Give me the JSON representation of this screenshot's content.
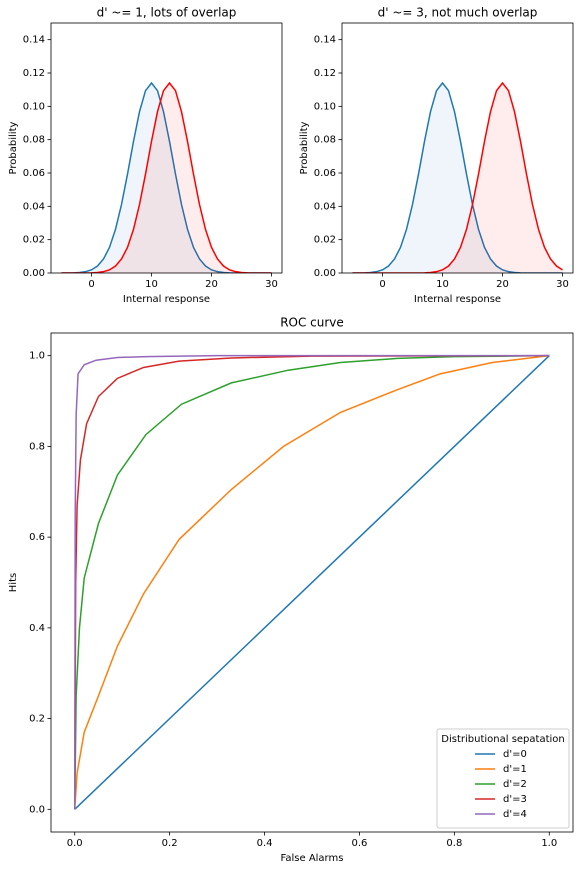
{
  "chart_data": [
    {
      "type": "line",
      "title": "d' ~= 1, lots of overlap",
      "xlabel": "Internal response",
      "ylabel": "Probability",
      "fill": true,
      "x": [
        -5,
        -4,
        -3,
        -2,
        -1,
        0,
        1,
        2,
        3,
        4,
        5,
        6,
        7,
        8,
        9,
        10,
        11,
        12,
        13,
        14,
        15,
        16,
        17,
        18,
        19,
        20,
        21,
        22,
        23,
        24,
        25,
        26,
        27,
        28,
        29,
        30
      ],
      "series": [
        {
          "color": "#1f77b4",
          "values": [
            0,
            0,
            0.0001,
            0.0003,
            0.0008,
            0.0019,
            0.0042,
            0.0084,
            0.0154,
            0.0262,
            0.0411,
            0.0593,
            0.079,
            0.0968,
            0.1094,
            0.114,
            0.1094,
            0.0968,
            0.079,
            0.0593,
            0.0411,
            0.0262,
            0.0154,
            0.0084,
            0.0042,
            0.0019,
            0.0008,
            0.0003,
            0.0001,
            0,
            0,
            0,
            0,
            0,
            0,
            0
          ]
        },
        {
          "color": "#ff0000",
          "values": [
            0,
            0,
            0,
            0,
            0,
            0.0001,
            0.0003,
            0.0008,
            0.0019,
            0.0042,
            0.0084,
            0.0154,
            0.0262,
            0.0411,
            0.0593,
            0.079,
            0.0968,
            0.1094,
            0.114,
            0.1094,
            0.0968,
            0.079,
            0.0593,
            0.0411,
            0.0262,
            0.0154,
            0.0084,
            0.0042,
            0.0019,
            0.0008,
            0.0003,
            0.0001,
            0,
            0,
            0,
            0
          ]
        }
      ],
      "xlim": [
        -6.75,
        31.75
      ],
      "xticks": [
        0,
        10,
        20,
        30
      ],
      "ylim": [
        0,
        0.15
      ],
      "yticks": [
        {
          "value": 0,
          "label": "0.00"
        },
        {
          "value": 0.02,
          "label": "0.02"
        },
        {
          "value": 0.04,
          "label": "0.04"
        },
        {
          "value": 0.06,
          "label": "0.06"
        },
        {
          "value": 0.08,
          "label": "0.08"
        },
        {
          "value": 0.1,
          "label": "0.10"
        },
        {
          "value": 0.12,
          "label": "0.12"
        },
        {
          "value": 0.14,
          "label": "0.14"
        }
      ]
    },
    {
      "type": "line",
      "title": "d' ~= 3, not much overlap",
      "xlabel": "Internal response",
      "ylabel": "Probability",
      "fill": true,
      "x": [
        -5,
        -4,
        -3,
        -2,
        -1,
        0,
        1,
        2,
        3,
        4,
        5,
        6,
        7,
        8,
        9,
        10,
        11,
        12,
        13,
        14,
        15,
        16,
        17,
        18,
        19,
        20,
        21,
        22,
        23,
        24,
        25,
        26,
        27,
        28,
        29,
        30
      ],
      "series": [
        {
          "color": "#1f77b4",
          "values": [
            0,
            0,
            0.0001,
            0.0003,
            0.0008,
            0.0019,
            0.0042,
            0.0084,
            0.0154,
            0.0262,
            0.0411,
            0.0593,
            0.079,
            0.0968,
            0.1094,
            0.114,
            0.1094,
            0.0968,
            0.079,
            0.0593,
            0.0411,
            0.0262,
            0.0154,
            0.0084,
            0.0042,
            0.0019,
            0.0008,
            0.0003,
            0.0001,
            0,
            0,
            0,
            0,
            0,
            0,
            0
          ]
        },
        {
          "color": "#ff0000",
          "values": [
            0,
            0,
            0,
            0,
            0,
            0,
            0,
            0,
            0,
            0,
            0,
            0,
            0.0001,
            0.0003,
            0.0008,
            0.0019,
            0.0042,
            0.0084,
            0.0154,
            0.0262,
            0.0411,
            0.0593,
            0.079,
            0.0968,
            0.1094,
            0.114,
            0.1094,
            0.0968,
            0.079,
            0.0593,
            0.0411,
            0.0262,
            0.0154,
            0.0084,
            0.0042,
            0.0019
          ]
        }
      ],
      "xlim": [
        -6.75,
        31.75
      ],
      "xticks": [
        0,
        10,
        20,
        30
      ],
      "ylim": [
        0,
        0.15
      ],
      "yticks": [
        {
          "value": 0,
          "label": "0.00"
        },
        {
          "value": 0.02,
          "label": "0.02"
        },
        {
          "value": 0.04,
          "label": "0.04"
        },
        {
          "value": 0.06,
          "label": "0.06"
        },
        {
          "value": 0.08,
          "label": "0.08"
        },
        {
          "value": 0.1,
          "label": "0.10"
        },
        {
          "value": 0.12,
          "label": "0.12"
        },
        {
          "value": 0.14,
          "label": "0.14"
        }
      ]
    },
    {
      "type": "line",
      "title": "ROC curve",
      "xlabel": "False Alarms",
      "ylabel": "Hits",
      "legend_title": "Distributional sepatation",
      "legend": "lower right",
      "series": [
        {
          "name": "d'=0",
          "color": "#1f77b4",
          "x": [
            0,
            1
          ],
          "values": [
            0,
            1
          ]
        },
        {
          "name": "d'=1",
          "color": "#ff7f0e",
          "x": [
            0,
            0.005,
            0.02,
            0.05,
            0.09,
            0.145,
            0.22,
            0.33,
            0.44,
            0.56,
            0.68,
            0.77,
            0.88,
            1
          ],
          "values": [
            0,
            0.08,
            0.17,
            0.25,
            0.36,
            0.475,
            0.595,
            0.705,
            0.8,
            0.875,
            0.925,
            0.96,
            0.985,
            1
          ]
        },
        {
          "name": "d'=2",
          "color": "#2ca02c",
          "x": [
            0,
            0.003,
            0.01,
            0.02,
            0.05,
            0.09,
            0.15,
            0.225,
            0.33,
            0.45,
            0.56,
            0.68,
            0.8,
            1
          ],
          "values": [
            0,
            0.25,
            0.4,
            0.51,
            0.63,
            0.737,
            0.826,
            0.893,
            0.94,
            0.968,
            0.985,
            0.994,
            0.998,
            1
          ]
        },
        {
          "name": "d'=3",
          "color": "#d62728",
          "x": [
            0,
            0.002,
            0.005,
            0.012,
            0.025,
            0.05,
            0.09,
            0.145,
            0.22,
            0.33,
            0.5,
            1
          ],
          "values": [
            0,
            0.5,
            0.67,
            0.77,
            0.85,
            0.91,
            0.95,
            0.974,
            0.988,
            0.995,
            0.999,
            1
          ]
        },
        {
          "name": "d'=4",
          "color": "#9467bd",
          "x": [
            0,
            0.001,
            0.003,
            0.007,
            0.02,
            0.045,
            0.09,
            0.15,
            0.3,
            1
          ],
          "values": [
            0,
            0.65,
            0.87,
            0.96,
            0.98,
            0.99,
            0.996,
            0.998,
            1,
            1
          ]
        }
      ],
      "xlim": [
        -0.05,
        1.05
      ],
      "xticks": [
        {
          "value": 0,
          "label": "0.0"
        },
        {
          "value": 0.2,
          "label": "0.2"
        },
        {
          "value": 0.4,
          "label": "0.4"
        },
        {
          "value": 0.6,
          "label": "0.6"
        },
        {
          "value": 0.8,
          "label": "0.8"
        },
        {
          "value": 1,
          "label": "1.0"
        }
      ],
      "ylim": [
        -0.05,
        1.05
      ],
      "yticks": [
        {
          "value": 0,
          "label": "0.0"
        },
        {
          "value": 0.2,
          "label": "0.2"
        },
        {
          "value": 0.4,
          "label": "0.4"
        },
        {
          "value": 0.6,
          "label": "0.6"
        },
        {
          "value": 0.8,
          "label": "0.8"
        },
        {
          "value": 1,
          "label": "1.0"
        }
      ]
    }
  ]
}
